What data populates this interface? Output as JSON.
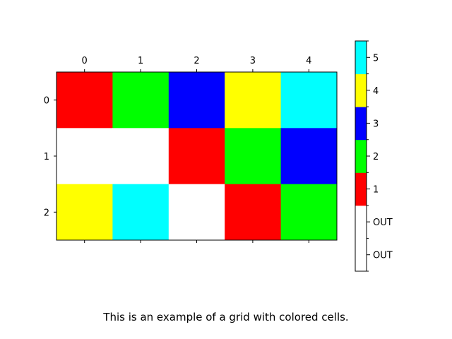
{
  "chart_data": {
    "type": "heatmap",
    "x_ticks": [
      "0",
      "1",
      "2",
      "3",
      "4"
    ],
    "y_ticks": [
      "0",
      "1",
      "2"
    ],
    "grid": [
      [
        1,
        2,
        3,
        4,
        5
      ],
      [
        0,
        0,
        1,
        2,
        3
      ],
      [
        4,
        5,
        0,
        1,
        2
      ]
    ],
    "palette": {
      "0": "#ffffff",
      "1": "#ff0000",
      "2": "#00ff00",
      "3": "#0000ff",
      "4": "#ffff00",
      "5": "#00ffff"
    },
    "colorbar": {
      "segments": [
        {
          "value": 0,
          "color": "#ffffff"
        },
        {
          "value": 0,
          "color": "#ffffff"
        },
        {
          "value": 1,
          "color": "#ff0000"
        },
        {
          "value": 2,
          "color": "#00ff00"
        },
        {
          "value": 3,
          "color": "#0000ff"
        },
        {
          "value": 4,
          "color": "#ffff00"
        },
        {
          "value": 5,
          "color": "#00ffff"
        }
      ],
      "tick_labels": [
        "OUT",
        "OUT",
        "1",
        "2",
        "3",
        "4",
        "5"
      ]
    },
    "caption": "This is an example of a grid with colored cells."
  }
}
